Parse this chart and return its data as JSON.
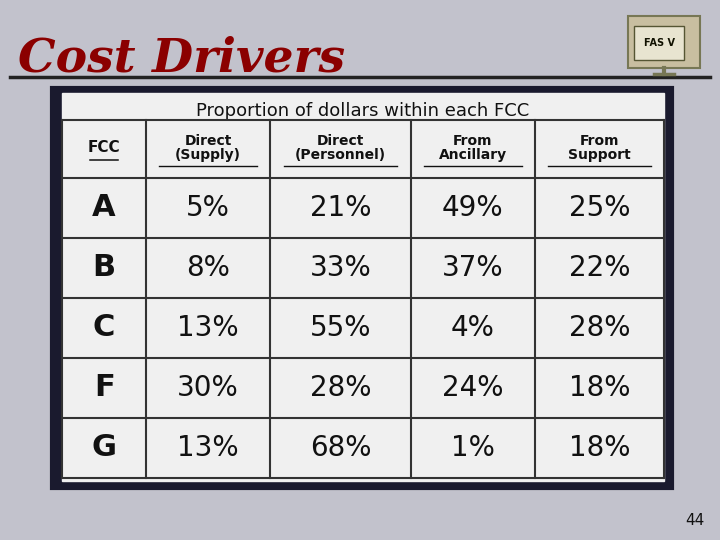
{
  "title": "Cost Drivers",
  "subtitle": "Proportion of dollars within each FCC",
  "title_color": "#8B0000",
  "col_headers_line1": [
    "FCC",
    "Direct",
    "Direct",
    "From",
    "From"
  ],
  "col_headers_line2": [
    "",
    "(Supply)",
    "(Personnel)",
    "Ancillary",
    "Support"
  ],
  "rows": [
    [
      "A",
      "5%",
      "21%",
      "49%",
      "25%"
    ],
    [
      "B",
      "8%",
      "33%",
      "37%",
      "22%"
    ],
    [
      "C",
      "13%",
      "55%",
      "4%",
      "28%"
    ],
    [
      "F",
      "30%",
      "28%",
      "24%",
      "18%"
    ],
    [
      "G",
      "13%",
      "68%",
      "1%",
      "18%"
    ]
  ],
  "page_number": "44",
  "fas_label": "FAS V",
  "slide_bg": "#b8b8c0",
  "table_outer_bg": "#1a1a2e",
  "table_inner_bg": "#f0f0f0",
  "table_line_color": "#333333"
}
